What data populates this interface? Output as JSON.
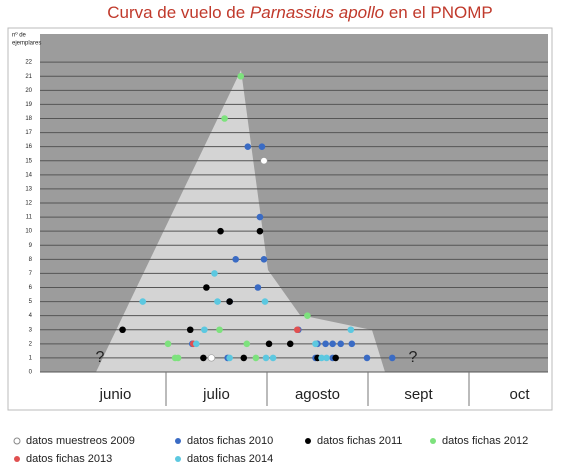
{
  "chart_data": {
    "type": "scatter",
    "title": [
      "Curva de vuelo de ",
      "Parnassius apollo",
      " en el PNOMP"
    ],
    "y_label": [
      "nº de",
      "ejemplares"
    ],
    "categories": [
      "junio",
      "julio",
      "agosto",
      "sept",
      "oct"
    ],
    "xlim": [
      0,
      5
    ],
    "ylim": [
      0,
      24
    ],
    "yticks": [
      0,
      1,
      2,
      3,
      4,
      5,
      6,
      7,
      8,
      9,
      10,
      11,
      12,
      13,
      14,
      15,
      16,
      17,
      18,
      19,
      20,
      21,
      22
    ],
    "grid": true,
    "legend": "bottom",
    "annotations": [
      "?",
      "?"
    ],
    "series": [
      {
        "name": "datos muestreos 2009",
        "color": "#ffffff",
        "x": [
          1.97,
          1.45
        ],
        "values": [
          15,
          1
        ]
      },
      {
        "name": "datos fichas 2010",
        "color": "#3a6bc4",
        "x": [
          1.81,
          1.95,
          1.93,
          1.69,
          1.97,
          1.91,
          1.63,
          1.61,
          2.5,
          2.58,
          2.65,
          2.73,
          2.84,
          2.48,
          2.65,
          2.99,
          3.24,
          2.31,
          1.26
        ],
        "values": [
          16,
          16,
          11,
          8,
          8,
          6,
          5,
          1,
          2,
          2,
          2,
          2,
          2,
          1,
          1,
          1,
          1,
          3,
          2
        ]
      },
      {
        "name": "datos fichas 2011",
        "color": "#000000",
        "x": [
          0.57,
          1.54,
          1.93,
          1.4,
          1.24,
          1.37,
          1.63,
          1.77,
          2.02,
          2.23,
          2.5,
          2.68
        ],
        "values": [
          3,
          10,
          10,
          6,
          3,
          1,
          5,
          1,
          2,
          2,
          1,
          1
        ]
      },
      {
        "name": "datos fichas 2012",
        "color": "#7de27d",
        "x": [
          1.74,
          1.58,
          1.02,
          1.09,
          1.12,
          1.53,
          1.8,
          1.89,
          2.4
        ],
        "values": [
          21,
          18,
          2,
          1,
          1,
          3,
          2,
          1,
          4
        ]
      },
      {
        "name": "datos fichas 2013",
        "color": "#e05050",
        "x": [
          1.27,
          2.3
        ],
        "values": [
          2,
          3
        ]
      },
      {
        "name": "datos fichas 2014",
        "color": "#5cc8e0",
        "x": [
          0.77,
          1.48,
          1.51,
          1.98,
          1.38,
          1.3,
          1.63,
          1.99,
          2.06,
          2.54,
          2.59,
          2.83,
          2.48
        ],
        "values": [
          5,
          7,
          5,
          5,
          3,
          2,
          1,
          1,
          1,
          1,
          1,
          3,
          2
        ]
      }
    ]
  }
}
